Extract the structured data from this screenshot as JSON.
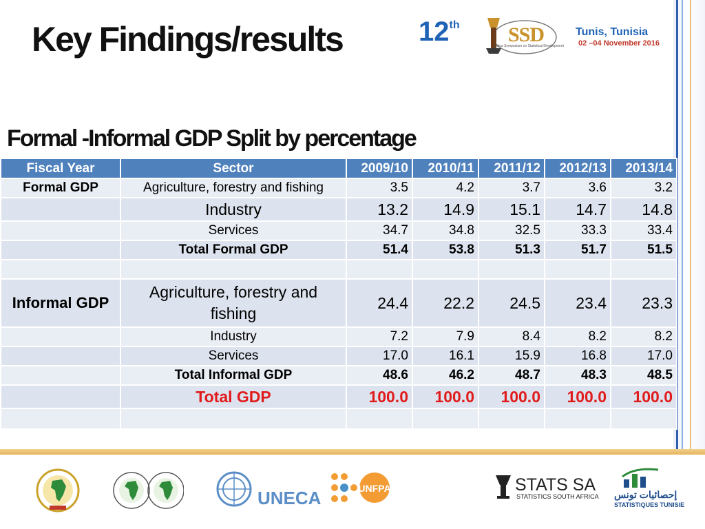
{
  "slide": {
    "title": "Key Findings/results"
  },
  "header": {
    "edition": "12",
    "edition_suffix": "th",
    "ssd_logo_text": "SSD",
    "ssd_subtitle": "Africa Symposium on Statistical Development",
    "city": "Tunis, Tunisia",
    "dates": "02 –04 November 2016"
  },
  "table": {
    "title": "Formal -Informal GDP Split by percentage",
    "headers": [
      "Fiscal Year",
      "Sector",
      "2009/10",
      "2010/11",
      "2011/12",
      "2012/13",
      "2013/14"
    ],
    "rows": [
      {
        "group": "Formal GDP",
        "sector": "Agriculture, forestry and fishing",
        "values": [
          "3.5",
          "4.2",
          "3.7",
          "3.6",
          "3.2"
        ]
      },
      {
        "group": "",
        "sector": "Industry",
        "values": [
          "13.2",
          "14.9",
          "15.1",
          "14.7",
          "14.8"
        ]
      },
      {
        "group": "",
        "sector": "Services",
        "values": [
          "34.7",
          "34.8",
          "32.5",
          "33.3",
          "33.4"
        ]
      },
      {
        "group": "",
        "sector": "Total Formal GDP",
        "values": [
          "51.4",
          "53.8",
          "51.3",
          "51.7",
          "51.5"
        ]
      },
      {
        "group": "",
        "sector": "",
        "values": [
          "",
          "",
          "",
          "",
          ""
        ]
      },
      {
        "group": "Informal GDP",
        "sector": "Agriculture, forestry and fishing",
        "values": [
          "24.4",
          "22.2",
          "24.5",
          "23.4",
          "23.3"
        ]
      },
      {
        "group": "",
        "sector": "Industry",
        "values": [
          "7.2",
          "7.9",
          "8.4",
          "8.2",
          "8.2"
        ]
      },
      {
        "group": "",
        "sector": "Services",
        "values": [
          "17.0",
          "16.1",
          "15.9",
          "16.8",
          "17.0"
        ]
      },
      {
        "group": "",
        "sector": "Total Informal GDP",
        "values": [
          "48.6",
          "46.2",
          "48.7",
          "48.3",
          "48.5"
        ]
      },
      {
        "group": "",
        "sector": "Total GDP",
        "values": [
          "100.0",
          "100.0",
          "100.0",
          "100.0",
          "100.0"
        ]
      },
      {
        "group": "",
        "sector": "",
        "values": [
          "",
          "",
          "",
          "",
          ""
        ]
      }
    ]
  },
  "footer": {
    "uneca_text": "UNECA",
    "unfpa_text": "UNFPA",
    "statssa_text": "STATS SA",
    "statssa_sub": "STATISTICS SOUTH AFRICA",
    "tunisie_ar": "إحصائيات تونس",
    "tunisie_fr": "STATISTIQUES TUNISIE"
  },
  "colors": {
    "header_blue": "#4f81bd",
    "row_fill": "#e9edf4",
    "total_gdp_red": "#e01b1b",
    "brand_blue": "#1f63b5"
  }
}
